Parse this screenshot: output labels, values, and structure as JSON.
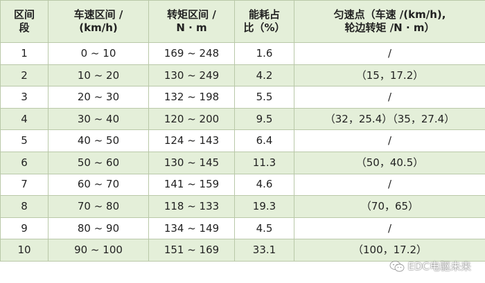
{
  "headers": {
    "c1": [
      "区间",
      "段"
    ],
    "c2": [
      "车速区间 /",
      "(km/h)"
    ],
    "c3": [
      "转矩区间 /",
      "N · m"
    ],
    "c4": [
      "能耗占",
      "比（%）"
    ],
    "c5": [
      "匀速点（车速 /(km/h),",
      "轮边转矩 /N · m）"
    ]
  },
  "rows": [
    {
      "seg": "1",
      "speed": "0 ~ 10",
      "torque": "169 ~ 248",
      "ratio": "1.6",
      "point": "/"
    },
    {
      "seg": "2",
      "speed": "10 ~ 20",
      "torque": "130 ~ 249",
      "ratio": "4.2",
      "point": "（15，17.2）"
    },
    {
      "seg": "3",
      "speed": "20 ~ 30",
      "torque": "132 ~ 198",
      "ratio": "5.5",
      "point": "/"
    },
    {
      "seg": "4",
      "speed": "30 ~ 40",
      "torque": "120 ~ 200",
      "ratio": "9.5",
      "point": "（32，25.4）（35，27.4）"
    },
    {
      "seg": "5",
      "speed": "40 ~ 50",
      "torque": "124 ~ 143",
      "ratio": "6.4",
      "point": "/"
    },
    {
      "seg": "6",
      "speed": "50 ~ 60",
      "torque": "130 ~ 145",
      "ratio": "11.3",
      "point": "（50，40.5）"
    },
    {
      "seg": "7",
      "speed": "60 ~ 70",
      "torque": "141 ~ 159",
      "ratio": "4.6",
      "point": "/"
    },
    {
      "seg": "8",
      "speed": "70 ~ 80",
      "torque": "118 ~ 133",
      "ratio": "19.3",
      "point": "（70，65）"
    },
    {
      "seg": "9",
      "speed": "80 ~ 90",
      "torque": "134 ~ 149",
      "ratio": "4.5",
      "point": "/"
    },
    {
      "seg": "10",
      "speed": "90 ~ 100",
      "torque": "151 ~ 169",
      "ratio": "33.1",
      "point": "（100，17.2）"
    }
  ],
  "watermark": {
    "icon": "wechat-icon",
    "text": "EDC电驱未来"
  },
  "colors": {
    "header_bg": "#e4efd9",
    "alt_row_bg": "#e4efd9",
    "border": "#b9c8a8"
  }
}
